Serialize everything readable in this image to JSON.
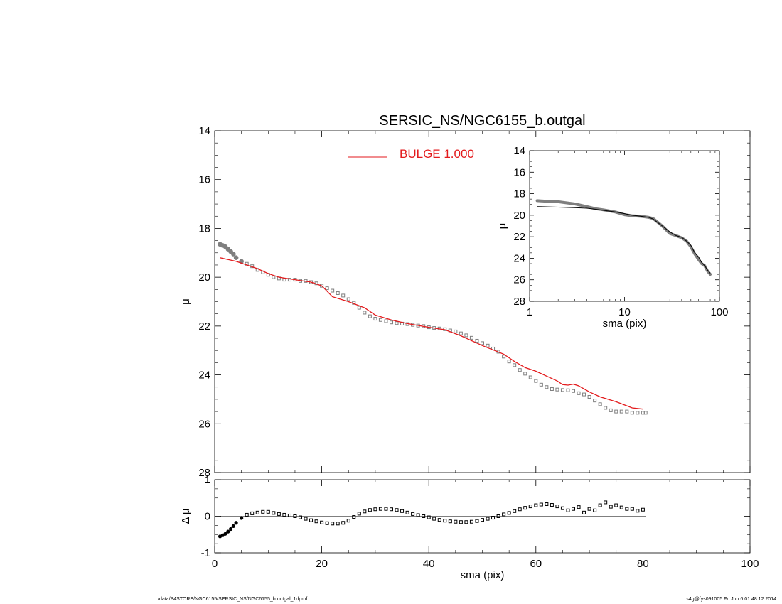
{
  "chart_data": [
    {
      "type": "scatter",
      "title": "SERSIC_NS/NGC6155_b.outgal",
      "xlabel": "",
      "ylabel": "μ",
      "xlim": [
        0,
        100
      ],
      "ylim": [
        28,
        14
      ],
      "y_inverted": true,
      "yticks": [
        14,
        16,
        18,
        20,
        22,
        24,
        26,
        28
      ],
      "grid": false,
      "legend_position": "top-center",
      "series": [
        {
          "name": "",
          "kind": "points",
          "color": "#7f7f7f",
          "x": [
            1,
            1.5,
            2,
            2.5,
            3,
            3.5,
            4,
            5,
            6,
            7,
            8,
            9,
            10,
            11,
            12,
            13,
            14,
            15,
            16,
            17,
            18,
            19,
            20,
            21,
            22,
            23,
            24,
            25,
            26,
            27,
            28,
            29,
            30,
            31,
            32,
            33,
            34,
            35,
            36,
            37,
            38,
            39,
            40,
            41,
            42,
            43,
            44,
            45,
            46,
            47,
            48,
            49,
            50,
            51,
            52,
            53,
            54,
            55,
            56,
            57,
            58,
            59,
            60,
            61,
            62,
            63,
            64,
            65,
            66,
            67,
            68,
            69,
            70,
            71,
            72,
            73,
            74,
            75,
            76,
            77,
            78,
            79,
            80,
            80.5
          ],
          "y": [
            18.65,
            18.7,
            18.75,
            18.85,
            18.95,
            19.05,
            19.2,
            19.35,
            19.45,
            19.55,
            19.7,
            19.8,
            19.9,
            20.0,
            20.05,
            20.1,
            20.1,
            20.1,
            20.15,
            20.15,
            20.2,
            20.25,
            20.35,
            20.45,
            20.55,
            20.65,
            20.75,
            20.9,
            21.05,
            21.25,
            21.45,
            21.6,
            21.7,
            21.75,
            21.8,
            21.85,
            21.88,
            21.9,
            21.92,
            21.95,
            21.98,
            22.0,
            22.05,
            22.08,
            22.1,
            22.13,
            22.18,
            22.22,
            22.3,
            22.38,
            22.48,
            22.6,
            22.7,
            22.8,
            22.92,
            23.05,
            23.25,
            23.45,
            23.6,
            23.8,
            23.95,
            24.1,
            24.25,
            24.4,
            24.5,
            24.58,
            24.6,
            24.62,
            24.63,
            24.66,
            24.75,
            24.8,
            24.9,
            25.05,
            25.2,
            25.35,
            25.45,
            25.5,
            25.5,
            25.5,
            25.55,
            25.55,
            25.55,
            25.55
          ]
        },
        {
          "name": "BULGE  1.000",
          "kind": "line",
          "color": "#e31a1c",
          "x": [
            1,
            4,
            8,
            10,
            12,
            15,
            18,
            20,
            22,
            25,
            28,
            30,
            33,
            36,
            40,
            43,
            46,
            50,
            54,
            56,
            58,
            60,
            62,
            64,
            65,
            66,
            67,
            68,
            70,
            72,
            75,
            78,
            80
          ],
          "y": [
            19.2,
            19.35,
            19.65,
            19.85,
            20.0,
            20.1,
            20.2,
            20.35,
            20.8,
            21.0,
            21.25,
            21.55,
            21.75,
            21.9,
            22.05,
            22.15,
            22.4,
            22.8,
            23.15,
            23.45,
            23.7,
            23.85,
            24.05,
            24.25,
            24.4,
            24.42,
            24.38,
            24.45,
            24.7,
            24.9,
            25.1,
            25.35,
            25.4
          ]
        }
      ]
    },
    {
      "type": "scatter",
      "title": "",
      "xlabel": "sma (pix)",
      "ylabel": "Δ μ",
      "xlim": [
        0,
        100
      ],
      "ylim": [
        -1,
        1
      ],
      "xticks": [
        0,
        20,
        40,
        60,
        80,
        100
      ],
      "yticks": [
        1,
        0,
        -1
      ],
      "grid": false,
      "series": [
        {
          "name": "",
          "kind": "points",
          "color": "#000000",
          "x": [
            1,
            1.5,
            2,
            2.5,
            3,
            3.5,
            4,
            5,
            6,
            7,
            8,
            9,
            10,
            11,
            12,
            13,
            14,
            15,
            16,
            17,
            18,
            19,
            20,
            21,
            22,
            23,
            24,
            25,
            26,
            27,
            28,
            29,
            30,
            31,
            32,
            33,
            34,
            35,
            36,
            37,
            38,
            39,
            40,
            41,
            42,
            43,
            44,
            45,
            46,
            47,
            48,
            49,
            50,
            51,
            52,
            53,
            54,
            55,
            56,
            57,
            58,
            59,
            60,
            61,
            62,
            63,
            64,
            65,
            66,
            67,
            68,
            69,
            70,
            71,
            72,
            73,
            74,
            75,
            76,
            77,
            78,
            79,
            80
          ],
          "y": [
            -0.55,
            -0.52,
            -0.48,
            -0.42,
            -0.35,
            -0.27,
            -0.18,
            -0.05,
            0.04,
            0.08,
            0.1,
            0.12,
            0.12,
            0.09,
            0.06,
            0.04,
            0.02,
            0.0,
            -0.03,
            -0.07,
            -0.11,
            -0.14,
            -0.17,
            -0.19,
            -0.2,
            -0.2,
            -0.18,
            -0.12,
            -0.02,
            0.07,
            0.13,
            0.17,
            0.19,
            0.2,
            0.2,
            0.19,
            0.17,
            0.14,
            0.1,
            0.06,
            0.03,
            0.0,
            -0.03,
            -0.07,
            -0.1,
            -0.12,
            -0.14,
            -0.15,
            -0.16,
            -0.16,
            -0.15,
            -0.13,
            -0.1,
            -0.07,
            -0.04,
            0.0,
            0.05,
            0.09,
            0.14,
            0.19,
            0.23,
            0.27,
            0.3,
            0.32,
            0.33,
            0.31,
            0.27,
            0.22,
            0.16,
            0.2,
            0.25,
            0.1,
            0.2,
            0.16,
            0.3,
            0.38,
            0.26,
            0.3,
            0.24,
            0.2,
            0.2,
            0.15,
            0.18
          ]
        }
      ]
    },
    {
      "type": "line",
      "title": "",
      "xlabel": "sma (pix)",
      "ylabel": "μ",
      "x_scale": "log",
      "xlim": [
        1,
        100
      ],
      "ylim": [
        28,
        14
      ],
      "y_inverted": true,
      "xticks": [
        1,
        10,
        100
      ],
      "yticks": [
        14,
        16,
        18,
        20,
        22,
        24,
        26,
        28
      ],
      "grid": false,
      "series": [
        {
          "name": "",
          "kind": "thick-points",
          "color": "#7f7f7f",
          "x": [
            1.2,
            1.5,
            2,
            3,
            4,
            5,
            6,
            8,
            10,
            12,
            15,
            18,
            20,
            25,
            30,
            35,
            40,
            45,
            50,
            55,
            60,
            65,
            70,
            75,
            80
          ],
          "y": [
            18.65,
            18.7,
            18.75,
            18.95,
            19.2,
            19.4,
            19.5,
            19.7,
            19.95,
            20.05,
            20.1,
            20.2,
            20.3,
            21.0,
            21.7,
            21.9,
            22.1,
            22.4,
            22.95,
            23.6,
            24.1,
            24.5,
            24.7,
            25.2,
            25.5
          ]
        },
        {
          "name": "",
          "kind": "line",
          "color": "#000000",
          "x": [
            1.2,
            2,
            3,
            4,
            5,
            6,
            8,
            10,
            12,
            15,
            18,
            20,
            25,
            30,
            35,
            40,
            45,
            50,
            55,
            60,
            65,
            70,
            75,
            80
          ],
          "y": [
            19.2,
            19.25,
            19.3,
            19.35,
            19.45,
            19.55,
            19.7,
            19.85,
            20.0,
            20.1,
            20.2,
            20.35,
            21.0,
            21.55,
            21.9,
            22.05,
            22.4,
            22.8,
            23.5,
            23.85,
            24.4,
            24.7,
            25.1,
            25.4
          ]
        }
      ]
    }
  ],
  "footer": {
    "left": "/data/P4STORE/NGC6155/SERSIC_NS/NGC6155_b.outgal_1dprof",
    "right": "s4g@fys091005  Fri Jun  6 01:48:12 2014"
  }
}
